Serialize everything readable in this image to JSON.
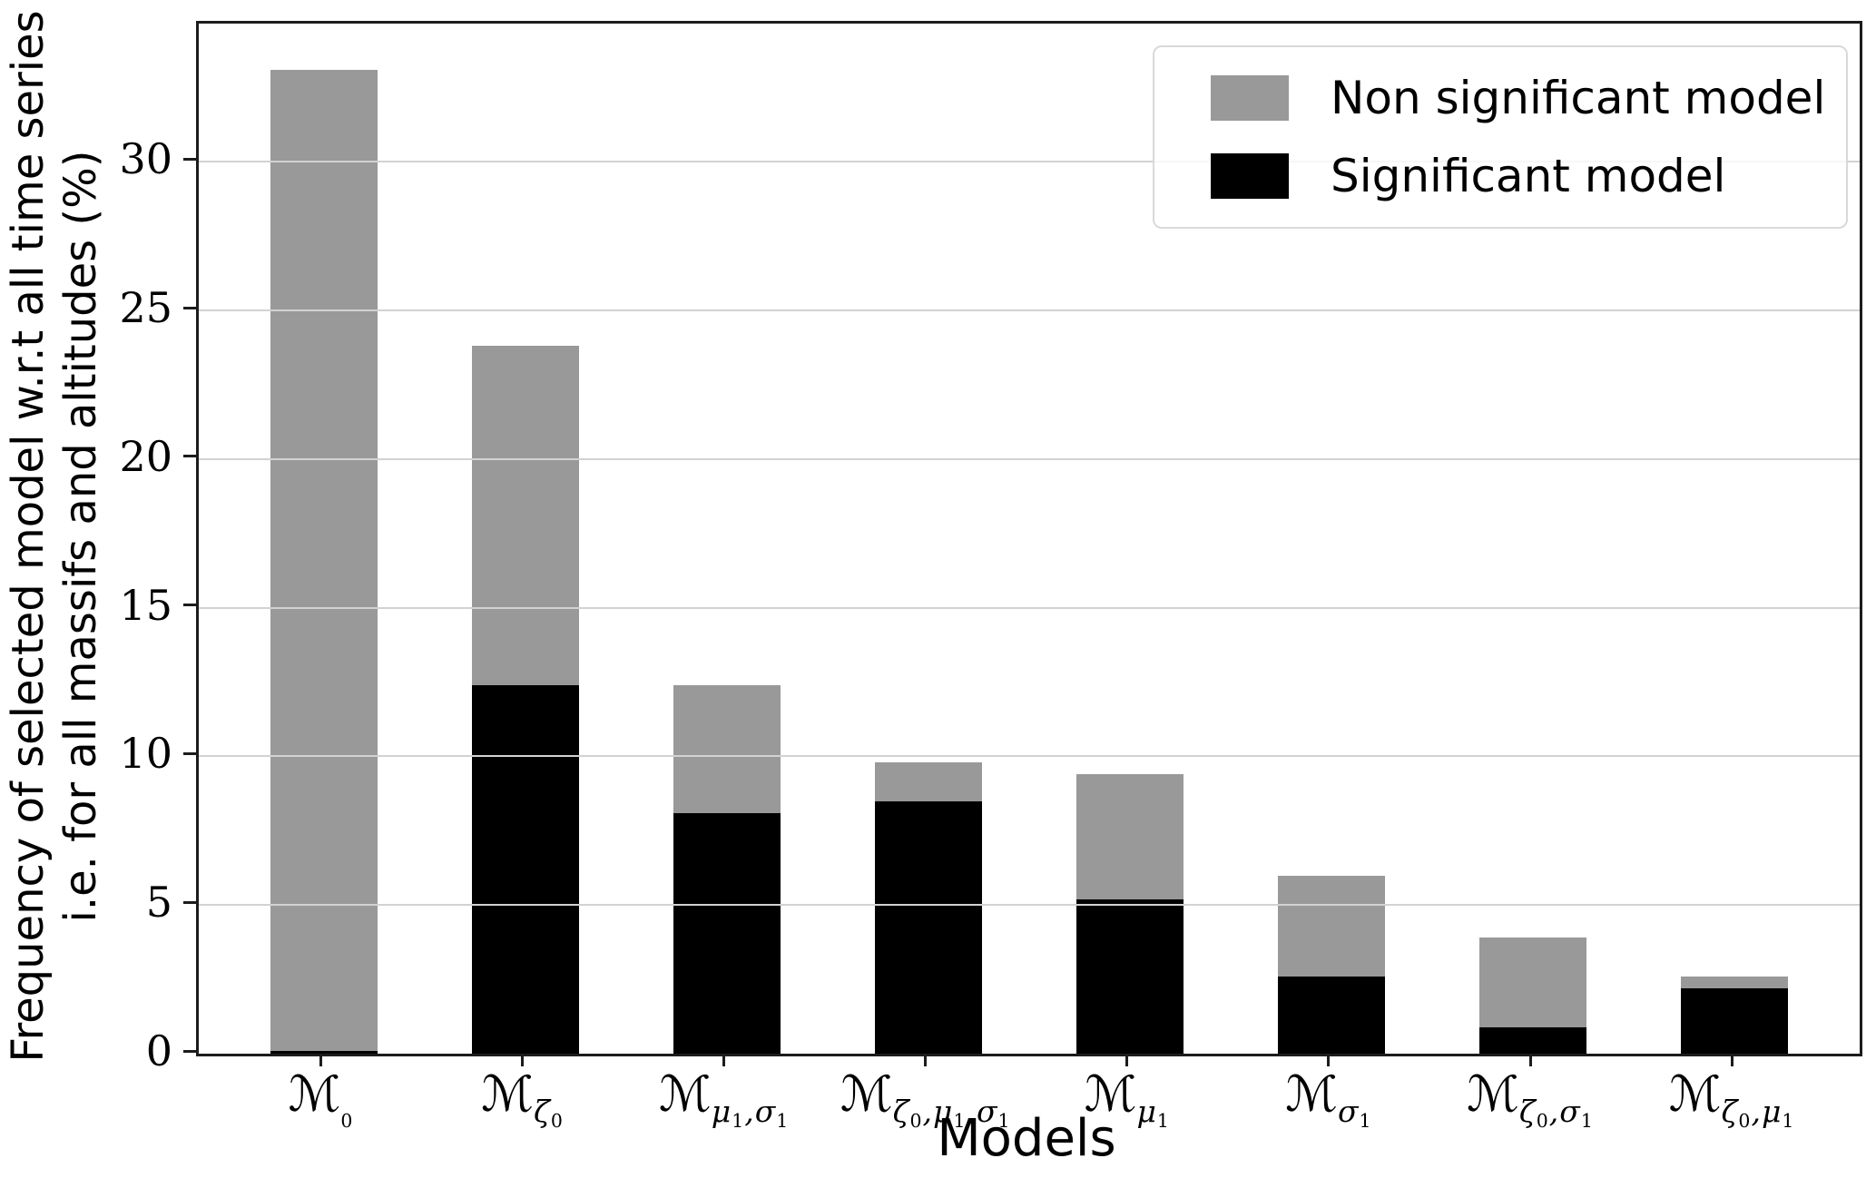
{
  "figure": {
    "xlabel": "Models",
    "ylabel_line1": "Frequency of selected model w.r.t all time series",
    "ylabel_line2": "i.e. for all massifs and altitudes (%)"
  },
  "legend": {
    "items": [
      {
        "label": "Non significant model",
        "color": "#999999",
        "series_key": "non_significant"
      },
      {
        "label": "Significant model",
        "color": "#000000",
        "series_key": "significant"
      }
    ]
  },
  "chart_data": {
    "type": "bar",
    "stacked": true,
    "title": "",
    "xlabel": "Models",
    "ylabel": "Frequency of selected model w.r.t all time series i.e. for all massifs and altitudes (%)",
    "ylim": [
      0,
      34.65
    ],
    "yticks": [
      0,
      5,
      10,
      15,
      20,
      25,
      30
    ],
    "grid": "horizontal, drawn above bars",
    "legend_position": "upper right",
    "categories": [
      {
        "main": "ℳ",
        "sub": "0"
      },
      {
        "main": "ℳ",
        "sub": "ζ0"
      },
      {
        "main": "ℳ",
        "sub": "μ1,σ1"
      },
      {
        "main": "ℳ",
        "sub": "ζ0,μ1,σ1"
      },
      {
        "main": "ℳ",
        "sub": "μ1"
      },
      {
        "main": "ℳ",
        "sub": "σ1"
      },
      {
        "main": "ℳ",
        "sub": "ζ0,σ1"
      },
      {
        "main": "ℳ",
        "sub": "ζ0,μ1"
      }
    ],
    "series": [
      {
        "name": "Significant model",
        "color": "#000000",
        "values": [
          0.1,
          12.4,
          8.1,
          8.5,
          5.2,
          2.6,
          0.9,
          2.2
        ]
      },
      {
        "name": "Non significant model",
        "color": "#999999",
        "values": [
          33.0,
          11.4,
          4.3,
          1.3,
          4.2,
          3.4,
          3.0,
          0.4
        ]
      }
    ],
    "totals": [
      33.1,
      23.8,
      12.4,
      9.8,
      9.4,
      6.0,
      3.9,
      2.6
    ]
  }
}
